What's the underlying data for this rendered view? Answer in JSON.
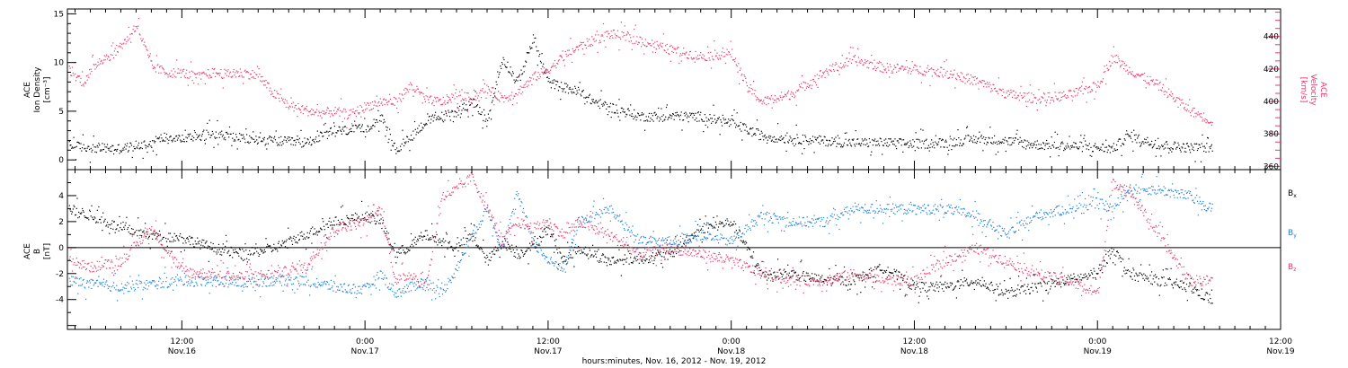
{
  "colors": {
    "black": "#000000",
    "pink": "#e8396a",
    "blue": "#1a7fe0",
    "axis": "#000000"
  },
  "x_axis": {
    "title": "hours:minutes, Nov. 16, 2012 - Nov. 19, 2012",
    "range_hours": [
      4.5,
      84
    ],
    "ticks": [
      {
        "hour": 12,
        "time": "12:00",
        "date": "Nov.16"
      },
      {
        "hour": 24,
        "time": "0:00",
        "date": "Nov.17"
      },
      {
        "hour": 36,
        "time": "12:00",
        "date": "Nov.17"
      },
      {
        "hour": 48,
        "time": "0:00",
        "date": "Nov.18"
      },
      {
        "hour": 60,
        "time": "12:00",
        "date": "Nov.18"
      },
      {
        "hour": 72,
        "time": "0:00",
        "date": "Nov.19"
      },
      {
        "hour": 84,
        "time": "12:00",
        "date": "Nov.19"
      }
    ]
  },
  "panel1": {
    "left_label": [
      "ACE",
      "Ion Density",
      "[cm⁻³]"
    ],
    "right_label": [
      "ACE",
      "Velocity",
      "[km/s]"
    ],
    "left_ticks": [
      "0",
      "5",
      "10",
      "15"
    ],
    "right_ticks": [
      "360",
      "380",
      "400",
      "420",
      "440"
    ]
  },
  "panel2": {
    "left_label": [
      "ACE",
      "B",
      "[nT]"
    ],
    "left_ticks": [
      "-4",
      "-2",
      "0",
      "2",
      "4"
    ],
    "legend": [
      "Bx",
      "By",
      "Bz"
    ]
  },
  "chart_data": [
    {
      "type": "scatter",
      "panel": "top",
      "xlabel": "hours:minutes, Nov. 16, 2012 - Nov. 19, 2012",
      "x_units": "hours since 2012-11-16 00:00 UT",
      "xlim": [
        4.5,
        84
      ],
      "ylabel": "ACE Ion Density [cm⁻³]",
      "ylim": [
        -1,
        15.5
      ],
      "y2label": "ACE Velocity [km/s]",
      "y2lim": [
        358,
        457
      ],
      "series": [
        {
          "name": "Ion Density",
          "axis": "left",
          "color": "#000000",
          "x": [
            4.6,
            6,
            8,
            10,
            11,
            12,
            14,
            16,
            18,
            20,
            22,
            24,
            25,
            26,
            27,
            28,
            29,
            30,
            31,
            32,
            33,
            34,
            35,
            36,
            37,
            38,
            39,
            40,
            42,
            44,
            46,
            48,
            50,
            52,
            54,
            56,
            58,
            60,
            62,
            64,
            66,
            68,
            70,
            72,
            73,
            74,
            76,
            78,
            79.5
          ],
          "y": [
            1.5,
            1.3,
            1.2,
            1.8,
            2.5,
            2.2,
            2.8,
            2.2,
            2.0,
            1.8,
            3.0,
            3.2,
            4.5,
            1.0,
            2.5,
            4.0,
            4.5,
            5.0,
            6.0,
            4.0,
            10.5,
            8.0,
            12.5,
            8.0,
            7.5,
            7.0,
            6.0,
            5.5,
            4.5,
            4.5,
            4.5,
            3.8,
            2.5,
            2.2,
            2.0,
            1.8,
            1.8,
            1.7,
            1.8,
            2.2,
            2.0,
            1.6,
            1.5,
            1.3,
            1.2,
            2.5,
            1.6,
            1.3,
            1.3
          ]
        },
        {
          "name": "Velocity",
          "axis": "right",
          "color": "#e8396a",
          "x": [
            4.6,
            5.5,
            6.5,
            7.5,
            8.5,
            9,
            10,
            11,
            12,
            13,
            14,
            15,
            16,
            17,
            18,
            19,
            20,
            21,
            22,
            23,
            24,
            25,
            26,
            27,
            28,
            29,
            30,
            31,
            32,
            33,
            34,
            35,
            36,
            37,
            38,
            40,
            42,
            44,
            46,
            48,
            49,
            50,
            52,
            54,
            56,
            58,
            60,
            62,
            64,
            66,
            68,
            70,
            72,
            73,
            74,
            76,
            78,
            79.5
          ],
          "y": [
            420,
            412,
            425,
            430,
            440,
            448,
            422,
            418,
            418,
            415,
            418,
            417,
            418,
            416,
            405,
            398,
            395,
            393,
            394,
            392,
            397,
            400,
            400,
            410,
            401,
            400,
            404,
            402,
            408,
            402,
            406,
            415,
            420,
            428,
            434,
            442,
            438,
            432,
            428,
            430,
            410,
            400,
            405,
            418,
            426,
            421,
            420,
            418,
            413,
            405,
            402,
            404,
            410,
            428,
            420,
            410,
            395,
            388
          ]
        }
      ]
    },
    {
      "type": "scatter",
      "panel": "bottom",
      "xlabel": "hours:minutes, Nov. 16, 2012 - Nov. 19, 2012",
      "x_units": "hours since 2012-11-16 00:00 UT",
      "xlim": [
        4.5,
        84
      ],
      "ylabel": "ACE B [nT]",
      "ylim": [
        -6.3,
        6.0
      ],
      "series": [
        {
          "name": "Bx",
          "color": "#000000",
          "x": [
            4.6,
            6,
            8,
            10,
            12,
            14,
            16,
            18,
            20,
            22,
            24,
            25,
            26,
            28,
            30,
            31,
            32,
            33,
            34,
            35,
            36,
            37,
            38,
            40,
            42,
            44,
            46,
            48,
            50,
            52,
            54,
            56,
            58,
            60,
            62,
            64,
            66,
            68,
            70,
            72,
            73,
            74,
            76,
            78,
            79.5
          ],
          "y": [
            3.0,
            2.5,
            1.5,
            1.0,
            0.8,
            0.0,
            -0.5,
            0.0,
            1.0,
            2.0,
            2.5,
            2.0,
            -0.5,
            1.0,
            0.0,
            1.0,
            -1.0,
            0.5,
            -0.5,
            0.2,
            1.5,
            -1.0,
            0.0,
            -1.0,
            -0.8,
            -0.5,
            1.5,
            2.0,
            -2.0,
            -2.0,
            -2.5,
            -2.5,
            -1.5,
            -3.0,
            -3.0,
            -2.5,
            -3.5,
            -3.0,
            -2.5,
            -2.0,
            0.0,
            -2.0,
            -2.5,
            -3.0,
            -4.0
          ]
        },
        {
          "name": "By",
          "color": "#1a7fe0",
          "x": [
            4.6,
            6,
            8,
            10,
            12,
            14,
            16,
            18,
            20,
            22,
            24,
            25,
            26,
            28,
            29,
            30,
            31,
            32,
            33,
            34,
            35,
            36,
            37,
            38,
            40,
            42,
            44,
            46,
            48,
            50,
            52,
            54,
            56,
            58,
            60,
            62,
            64,
            66,
            68,
            70,
            72,
            73,
            74,
            76,
            78,
            79.5
          ],
          "y": [
            -2.5,
            -2.8,
            -3.0,
            -2.8,
            -2.5,
            -2.5,
            -2.7,
            -2.5,
            -2.5,
            -3.0,
            -3.2,
            -2.0,
            -3.5,
            -2.5,
            -3.5,
            -1.5,
            1.0,
            3.0,
            0.0,
            4.0,
            0.5,
            -1.0,
            -1.5,
            2.0,
            3.0,
            0.5,
            0.5,
            1.0,
            0.5,
            2.5,
            2.0,
            2.0,
            3.0,
            3.0,
            3.0,
            3.0,
            2.5,
            1.0,
            2.5,
            3.0,
            3.5,
            3.0,
            4.5,
            4.5,
            4.0,
            3.0
          ]
        },
        {
          "name": "Bz",
          "color": "#e8396a",
          "x": [
            4.6,
            6,
            8,
            10,
            12,
            14,
            16,
            18,
            20,
            22,
            24,
            25,
            26,
            27,
            28,
            29,
            30,
            31,
            32,
            33,
            34,
            35,
            36,
            37,
            38,
            40,
            42,
            44,
            46,
            48,
            50,
            52,
            54,
            56,
            58,
            60,
            62,
            64,
            66,
            68,
            70,
            72,
            73,
            74,
            76,
            78,
            79.5
          ],
          "y": [
            -1.0,
            -1.5,
            -1.0,
            1.5,
            -1.8,
            -2.0,
            -2.2,
            -2.0,
            -1.5,
            1.5,
            2.0,
            3.0,
            -2.5,
            -2.0,
            -3.0,
            4.0,
            4.5,
            5.5,
            3.0,
            0.5,
            2.0,
            1.5,
            2.0,
            1.0,
            2.0,
            1.0,
            -0.5,
            0.0,
            -0.5,
            -1.0,
            -2.0,
            -2.5,
            -2.5,
            -2.0,
            -2.5,
            -2.5,
            -1.0,
            0.0,
            -1.0,
            -2.0,
            -2.5,
            -3.5,
            5.0,
            4.5,
            1.0,
            -2.5,
            -2.5
          ]
        }
      ]
    }
  ]
}
